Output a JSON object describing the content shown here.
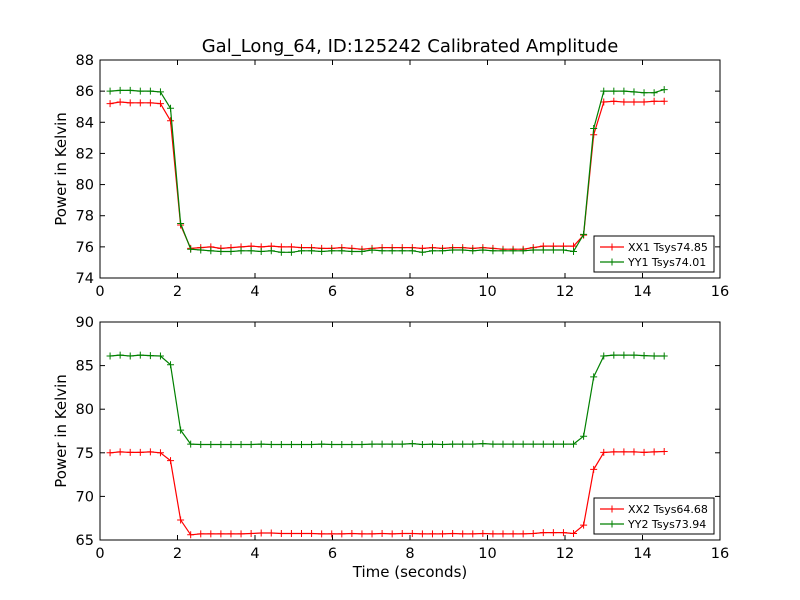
{
  "chart_data": [
    {
      "type": "line",
      "title": "Gal_Long_64, ID:125242 Calibrated Amplitude",
      "xlabel": "",
      "ylabel": "Power in Kelvin",
      "xlim": [
        0,
        16
      ],
      "ylim": [
        74,
        88
      ],
      "xticks": [
        "0",
        "2",
        "4",
        "6",
        "8",
        "10",
        "12",
        "14",
        "16"
      ],
      "yticks": [
        "74",
        "76",
        "78",
        "80",
        "82",
        "84",
        "86",
        "88"
      ],
      "legend_position": "lower-right",
      "series": [
        {
          "name": "XX1 Tsys74.85",
          "color": "#ff0000",
          "x": [
            0.26,
            0.52,
            0.78,
            1.04,
            1.3,
            1.56,
            1.82,
            2.08,
            2.34,
            2.6,
            2.86,
            3.12,
            3.38,
            3.64,
            3.9,
            4.16,
            4.42,
            4.68,
            4.94,
            5.2,
            5.46,
            5.72,
            5.98,
            6.24,
            6.5,
            6.76,
            7.02,
            7.28,
            7.54,
            7.8,
            8.06,
            8.32,
            8.58,
            8.84,
            9.1,
            9.36,
            9.62,
            9.88,
            10.14,
            10.4,
            10.66,
            10.92,
            11.18,
            11.44,
            11.7,
            11.96,
            12.22,
            12.48,
            12.74,
            13.0,
            13.26,
            13.52,
            13.78,
            14.04,
            14.3,
            14.56
          ],
          "y": [
            85.2,
            85.3,
            85.25,
            85.25,
            85.25,
            85.2,
            84.1,
            77.4,
            75.9,
            75.95,
            76.0,
            75.9,
            75.95,
            76.0,
            76.05,
            76.0,
            76.05,
            76.0,
            76.0,
            75.95,
            75.95,
            75.9,
            75.9,
            75.95,
            75.9,
            75.85,
            75.9,
            75.95,
            75.95,
            75.95,
            75.95,
            75.9,
            75.95,
            75.9,
            75.95,
            75.95,
            75.9,
            75.95,
            75.9,
            75.85,
            75.85,
            75.85,
            75.95,
            76.05,
            76.05,
            76.05,
            76.05,
            76.75,
            83.2,
            85.3,
            85.35,
            85.3,
            85.3,
            85.3,
            85.35,
            85.35
          ]
        },
        {
          "name": "YY1 Tsys74.01",
          "color": "#008000",
          "x": [
            0.26,
            0.52,
            0.78,
            1.04,
            1.3,
            1.56,
            1.82,
            2.08,
            2.34,
            2.6,
            2.86,
            3.12,
            3.38,
            3.64,
            3.9,
            4.16,
            4.42,
            4.68,
            4.94,
            5.2,
            5.46,
            5.72,
            5.98,
            6.24,
            6.5,
            6.76,
            7.02,
            7.28,
            7.54,
            7.8,
            8.06,
            8.32,
            8.58,
            8.84,
            9.1,
            9.36,
            9.62,
            9.88,
            10.14,
            10.4,
            10.66,
            10.92,
            11.18,
            11.44,
            11.7,
            11.96,
            12.22,
            12.48,
            12.74,
            13.0,
            13.26,
            13.52,
            13.78,
            14.04,
            14.3,
            14.56
          ],
          "y": [
            86.0,
            86.05,
            86.05,
            86.0,
            86.0,
            85.95,
            84.9,
            77.5,
            75.85,
            75.8,
            75.75,
            75.7,
            75.7,
            75.75,
            75.75,
            75.7,
            75.75,
            75.65,
            75.65,
            75.75,
            75.75,
            75.7,
            75.75,
            75.75,
            75.7,
            75.7,
            75.8,
            75.75,
            75.75,
            75.75,
            75.75,
            75.65,
            75.75,
            75.75,
            75.8,
            75.8,
            75.75,
            75.8,
            75.75,
            75.75,
            75.75,
            75.75,
            75.8,
            75.8,
            75.8,
            75.8,
            75.7,
            76.8,
            83.6,
            86.0,
            86.0,
            86.0,
            85.95,
            85.9,
            85.9,
            86.1
          ]
        }
      ]
    },
    {
      "type": "line",
      "title": "",
      "xlabel": "Time (seconds)",
      "ylabel": "Power in Kelvin",
      "xlim": [
        0,
        16
      ],
      "ylim": [
        65,
        90
      ],
      "xticks": [
        "0",
        "2",
        "4",
        "6",
        "8",
        "10",
        "12",
        "14",
        "16"
      ],
      "yticks": [
        "65",
        "70",
        "75",
        "80",
        "85",
        "90"
      ],
      "legend_position": "lower-right",
      "series": [
        {
          "name": "XX2 Tsys64.68",
          "color": "#ff0000",
          "x": [
            0.26,
            0.52,
            0.78,
            1.04,
            1.3,
            1.56,
            1.82,
            2.08,
            2.34,
            2.6,
            2.86,
            3.12,
            3.38,
            3.64,
            3.9,
            4.16,
            4.42,
            4.68,
            4.94,
            5.2,
            5.46,
            5.72,
            5.98,
            6.24,
            6.5,
            6.76,
            7.02,
            7.28,
            7.54,
            7.8,
            8.06,
            8.32,
            8.58,
            8.84,
            9.1,
            9.36,
            9.62,
            9.88,
            10.14,
            10.4,
            10.66,
            10.92,
            11.18,
            11.44,
            11.7,
            11.96,
            12.22,
            12.48,
            12.74,
            13.0,
            13.26,
            13.52,
            13.78,
            14.04,
            14.3,
            14.56
          ],
          "y": [
            75.0,
            75.1,
            75.05,
            75.05,
            75.1,
            75.0,
            74.1,
            67.3,
            65.6,
            65.7,
            65.7,
            65.7,
            65.7,
            65.7,
            65.75,
            65.8,
            65.8,
            65.75,
            65.75,
            65.75,
            65.75,
            65.7,
            65.7,
            65.7,
            65.75,
            65.7,
            65.7,
            65.75,
            65.7,
            65.75,
            65.75,
            65.7,
            65.7,
            65.7,
            65.75,
            65.7,
            65.7,
            65.75,
            65.7,
            65.7,
            65.7,
            65.7,
            65.75,
            65.85,
            65.85,
            65.85,
            65.75,
            66.7,
            73.1,
            75.05,
            75.1,
            75.1,
            75.1,
            75.05,
            75.1,
            75.15
          ]
        },
        {
          "name": "YY2 Tsys73.94",
          "color": "#008000",
          "x": [
            0.26,
            0.52,
            0.78,
            1.04,
            1.3,
            1.56,
            1.82,
            2.08,
            2.34,
            2.6,
            2.86,
            3.12,
            3.38,
            3.64,
            3.9,
            4.16,
            4.42,
            4.68,
            4.94,
            5.2,
            5.46,
            5.72,
            5.98,
            6.24,
            6.5,
            6.76,
            7.02,
            7.28,
            7.54,
            7.8,
            8.06,
            8.32,
            8.58,
            8.84,
            9.1,
            9.36,
            9.62,
            9.88,
            10.14,
            10.4,
            10.66,
            10.92,
            11.18,
            11.44,
            11.7,
            11.96,
            12.22,
            12.48,
            12.74,
            13.0,
            13.26,
            13.52,
            13.78,
            14.04,
            14.3,
            14.56
          ],
          "y": [
            86.1,
            86.2,
            86.1,
            86.2,
            86.15,
            86.1,
            85.1,
            77.6,
            76.0,
            75.95,
            75.95,
            75.95,
            75.95,
            75.95,
            75.95,
            76.0,
            75.95,
            75.95,
            75.95,
            75.95,
            75.95,
            76.0,
            75.95,
            75.95,
            75.95,
            75.95,
            76.0,
            76.0,
            76.0,
            76.0,
            76.05,
            75.95,
            76.0,
            75.95,
            76.0,
            76.0,
            76.0,
            76.05,
            76.0,
            76.0,
            76.0,
            76.0,
            76.0,
            76.0,
            76.0,
            76.0,
            76.0,
            76.9,
            83.7,
            86.1,
            86.2,
            86.2,
            86.2,
            86.15,
            86.1,
            86.1
          ]
        }
      ]
    }
  ]
}
